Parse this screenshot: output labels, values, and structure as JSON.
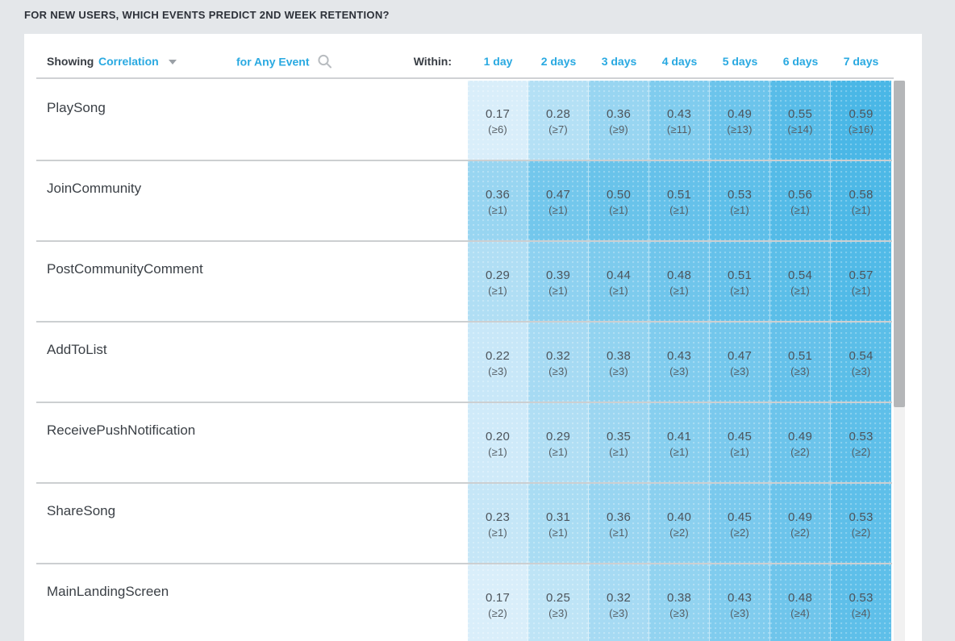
{
  "page": {
    "title": "FOR NEW USERS, WHICH EVENTS PREDICT 2ND WEEK RETENTION?"
  },
  "toolbar": {
    "showing_label": "Showing",
    "metric_selector": "Correlation",
    "event_selector": "for Any Event",
    "within_label": "Within:"
  },
  "icons": {
    "caret-down-icon": "▾",
    "search-icon": "⌕"
  },
  "colors": {
    "accent_blue": "#29a9e1",
    "page_background": "#e4e7ea",
    "card_background": "#ffffff",
    "cell_text": "#4d545b",
    "heatmap_min_color": "#d9eefa",
    "heatmap_max_color": "#4ab7e6"
  },
  "chart_data": {
    "type": "heatmap",
    "title": "FOR NEW USERS, WHICH EVENTS PREDICT 2ND WEEK RETENTION?",
    "columns": [
      "1 day",
      "2 days",
      "3 days",
      "4 days",
      "5 days",
      "6 days",
      "7 days"
    ],
    "rows": [
      "PlaySong",
      "JoinCommunity",
      "PostCommunityComment",
      "AddToList",
      "ReceivePushNotification",
      "ShareSong",
      "MainLandingScreen"
    ],
    "values": [
      [
        "0.17",
        "0.28",
        "0.36",
        "0.43",
        "0.49",
        "0.55",
        "0.59"
      ],
      [
        "0.36",
        "0.47",
        "0.50",
        "0.51",
        "0.53",
        "0.56",
        "0.58"
      ],
      [
        "0.29",
        "0.39",
        "0.44",
        "0.48",
        "0.51",
        "0.54",
        "0.57"
      ],
      [
        "0.22",
        "0.32",
        "0.38",
        "0.43",
        "0.47",
        "0.51",
        "0.54"
      ],
      [
        "0.20",
        "0.29",
        "0.35",
        "0.41",
        "0.45",
        "0.49",
        "0.53"
      ],
      [
        "0.23",
        "0.31",
        "0.36",
        "0.40",
        "0.45",
        "0.49",
        "0.53"
      ],
      [
        "0.17",
        "0.25",
        "0.32",
        "0.38",
        "0.43",
        "0.48",
        "0.53"
      ]
    ],
    "thresholds": [
      [
        "(≥6)",
        "(≥7)",
        "(≥9)",
        "(≥11)",
        "(≥13)",
        "(≥14)",
        "(≥16)"
      ],
      [
        "(≥1)",
        "(≥1)",
        "(≥1)",
        "(≥1)",
        "(≥1)",
        "(≥1)",
        "(≥1)"
      ],
      [
        "(≥1)",
        "(≥1)",
        "(≥1)",
        "(≥1)",
        "(≥1)",
        "(≥1)",
        "(≥1)"
      ],
      [
        "(≥3)",
        "(≥3)",
        "(≥3)",
        "(≥3)",
        "(≥3)",
        "(≥3)",
        "(≥3)"
      ],
      [
        "(≥1)",
        "(≥1)",
        "(≥1)",
        "(≥1)",
        "(≥1)",
        "(≥2)",
        "(≥2)"
      ],
      [
        "(≥1)",
        "(≥1)",
        "(≥1)",
        "(≥2)",
        "(≥2)",
        "(≥2)",
        "(≥2)"
      ],
      [
        "(≥2)",
        "(≥3)",
        "(≥3)",
        "(≥3)",
        "(≥3)",
        "(≥4)",
        "(≥4)"
      ]
    ],
    "color_scale": {
      "min_value": 0.17,
      "max_value": 0.59,
      "min_color": "#d9eefa",
      "max_color": "#4ab7e6"
    },
    "legend_position": "none",
    "grid": false
  }
}
